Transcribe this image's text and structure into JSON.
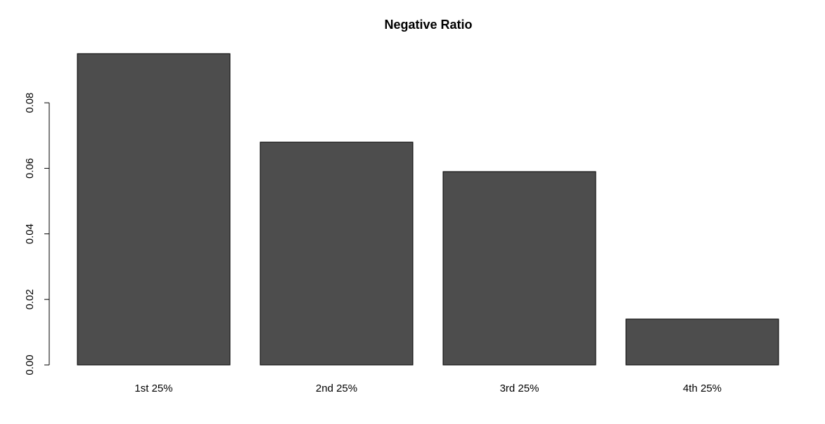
{
  "chart_data": {
    "type": "bar",
    "title": "Negative Ratio",
    "categories": [
      "1st 25%",
      "2nd 25%",
      "3rd 25%",
      "4th 25%"
    ],
    "values": [
      0.095,
      0.068,
      0.059,
      0.014
    ],
    "color": "#4d4d4d",
    "ylim": [
      0,
      0.1
    ],
    "yticks": [
      {
        "value": 0,
        "label": "0.00"
      },
      {
        "value": 0.02,
        "label": "0.02"
      },
      {
        "value": 0.04,
        "label": "0.04"
      },
      {
        "value": 0.06,
        "label": "0.06"
      },
      {
        "value": 0.08,
        "label": "0.08"
      }
    ]
  }
}
